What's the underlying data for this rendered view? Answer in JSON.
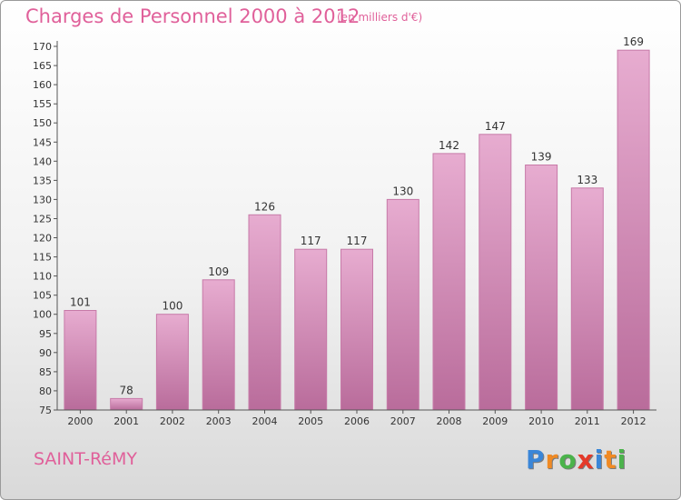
{
  "title": "Charges de Personnel 2000 à 2012",
  "subtitle": "(en milliers d'€)",
  "commune": "SAINT-RéMY",
  "logo": {
    "letters": [
      "P",
      "r",
      "o",
      "x",
      "i",
      "t",
      "i"
    ],
    "colors": [
      "#3a86d8",
      "#f08a24",
      "#4bb34b",
      "#e53a2a",
      "#3a86d8",
      "#f08a24",
      "#4bb34b"
    ]
  },
  "colors": {
    "bar": "#d88cb8",
    "bar_light": "#e7acd0",
    "bar_dark": "#b96c9b",
    "text": "#e0609a",
    "axis": "#555555"
  },
  "chart_data": {
    "type": "bar",
    "categories": [
      "2000",
      "2001",
      "2002",
      "2003",
      "2004",
      "2005",
      "2006",
      "2007",
      "2008",
      "2009",
      "2010",
      "2011",
      "2012"
    ],
    "values": [
      101,
      78,
      100,
      109,
      126,
      117,
      117,
      130,
      142,
      147,
      139,
      133,
      169
    ],
    "ylim": [
      75,
      170
    ],
    "yticks": [
      75,
      80,
      85,
      90,
      95,
      100,
      105,
      110,
      115,
      120,
      125,
      130,
      135,
      140,
      145,
      150,
      155,
      160,
      165,
      170
    ],
    "grid": false,
    "legend": "none"
  }
}
